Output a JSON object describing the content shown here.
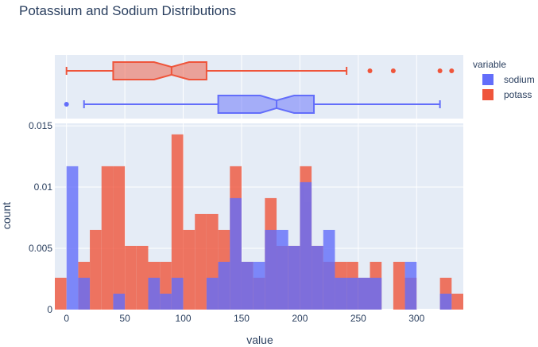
{
  "chart_data": {
    "type": "histogram",
    "title": "Potassium and Sodium Distributions",
    "xlabel": "value",
    "ylabel": "count",
    "xlim": [
      -10,
      340
    ],
    "ylim": [
      0,
      0.0152
    ],
    "bin_width": 10,
    "x_ticks": [
      0,
      50,
      100,
      150,
      200,
      250,
      300
    ],
    "y_ticks": [
      0,
      0.005,
      0.01,
      0.015
    ],
    "y_tick_labels": [
      "0",
      "0.005",
      "0.01",
      "0.015"
    ],
    "barmode": "overlay",
    "legend": {
      "title": "variable",
      "position": "top-right"
    },
    "colors": {
      "sodium": "#636efa",
      "potass": "#ef553b",
      "plot_bg": "#e5ecf6"
    },
    "series": [
      {
        "name": "sodium",
        "color": "#636efa",
        "bins": [
          {
            "x0": 0,
            "x1": 10,
            "y": 0.0117
          },
          {
            "x0": 10,
            "x1": 20,
            "y": 0.0026
          },
          {
            "x0": 40,
            "x1": 50,
            "y": 0.0013
          },
          {
            "x0": 70,
            "x1": 80,
            "y": 0.0026
          },
          {
            "x0": 80,
            "x1": 90,
            "y": 0.0013
          },
          {
            "x0": 90,
            "x1": 100,
            "y": 0.0026
          },
          {
            "x0": 120,
            "x1": 130,
            "y": 0.0026
          },
          {
            "x0": 130,
            "x1": 140,
            "y": 0.0039
          },
          {
            "x0": 140,
            "x1": 150,
            "y": 0.0091
          },
          {
            "x0": 150,
            "x1": 160,
            "y": 0.0039
          },
          {
            "x0": 160,
            "x1": 170,
            "y": 0.0039
          },
          {
            "x0": 170,
            "x1": 180,
            "y": 0.0065
          },
          {
            "x0": 180,
            "x1": 190,
            "y": 0.0065
          },
          {
            "x0": 190,
            "x1": 200,
            "y": 0.0052
          },
          {
            "x0": 200,
            "x1": 210,
            "y": 0.0104
          },
          {
            "x0": 210,
            "x1": 220,
            "y": 0.0052
          },
          {
            "x0": 220,
            "x1": 230,
            "y": 0.0065
          },
          {
            "x0": 230,
            "x1": 240,
            "y": 0.0026
          },
          {
            "x0": 240,
            "x1": 250,
            "y": 0.0026
          },
          {
            "x0": 250,
            "x1": 260,
            "y": 0.0026
          },
          {
            "x0": 260,
            "x1": 270,
            "y": 0.0026
          },
          {
            "x0": 290,
            "x1": 300,
            "y": 0.0039
          },
          {
            "x0": 320,
            "x1": 330,
            "y": 0.0013
          }
        ],
        "box": {
          "min": 15,
          "q1": 130,
          "median": 180,
          "q3": 212,
          "max": 320,
          "notch_low": 166,
          "notch_high": 195,
          "outliers": [
            0
          ]
        }
      },
      {
        "name": "potass",
        "color": "#ef553b",
        "bins": [
          {
            "x0": -10,
            "x1": 0,
            "y": 0.0026
          },
          {
            "x0": 10,
            "x1": 20,
            "y": 0.0039
          },
          {
            "x0": 20,
            "x1": 30,
            "y": 0.0065
          },
          {
            "x0": 30,
            "x1": 40,
            "y": 0.0117
          },
          {
            "x0": 40,
            "x1": 50,
            "y": 0.0117
          },
          {
            "x0": 50,
            "x1": 60,
            "y": 0.0052
          },
          {
            "x0": 60,
            "x1": 70,
            "y": 0.0052
          },
          {
            "x0": 70,
            "x1": 80,
            "y": 0.0039
          },
          {
            "x0": 80,
            "x1": 90,
            "y": 0.0039
          },
          {
            "x0": 90,
            "x1": 100,
            "y": 0.0143
          },
          {
            "x0": 100,
            "x1": 110,
            "y": 0.0065
          },
          {
            "x0": 110,
            "x1": 120,
            "y": 0.0078
          },
          {
            "x0": 120,
            "x1": 130,
            "y": 0.0078
          },
          {
            "x0": 130,
            "x1": 140,
            "y": 0.0065
          },
          {
            "x0": 140,
            "x1": 150,
            "y": 0.0117
          },
          {
            "x0": 150,
            "x1": 160,
            "y": 0.0039
          },
          {
            "x0": 160,
            "x1": 170,
            "y": 0.0026
          },
          {
            "x0": 170,
            "x1": 180,
            "y": 0.0091
          },
          {
            "x0": 180,
            "x1": 190,
            "y": 0.0052
          },
          {
            "x0": 190,
            "x1": 200,
            "y": 0.0052
          },
          {
            "x0": 200,
            "x1": 210,
            "y": 0.0117
          },
          {
            "x0": 210,
            "x1": 220,
            "y": 0.0052
          },
          {
            "x0": 220,
            "x1": 230,
            "y": 0.0039
          },
          {
            "x0": 230,
            "x1": 240,
            "y": 0.0039
          },
          {
            "x0": 240,
            "x1": 250,
            "y": 0.0039
          },
          {
            "x0": 250,
            "x1": 260,
            "y": 0.0026
          },
          {
            "x0": 260,
            "x1": 270,
            "y": 0.0039
          },
          {
            "x0": 280,
            "x1": 290,
            "y": 0.0039
          },
          {
            "x0": 290,
            "x1": 300,
            "y": 0.0026
          },
          {
            "x0": 320,
            "x1": 330,
            "y": 0.0026
          },
          {
            "x0": 330,
            "x1": 340,
            "y": 0.0013
          }
        ],
        "box": {
          "min": 0,
          "q1": 40,
          "median": 90,
          "q3": 120,
          "max": 240,
          "notch_low": 75,
          "notch_high": 105,
          "outliers": [
            260,
            280,
            320,
            330
          ]
        }
      }
    ]
  }
}
